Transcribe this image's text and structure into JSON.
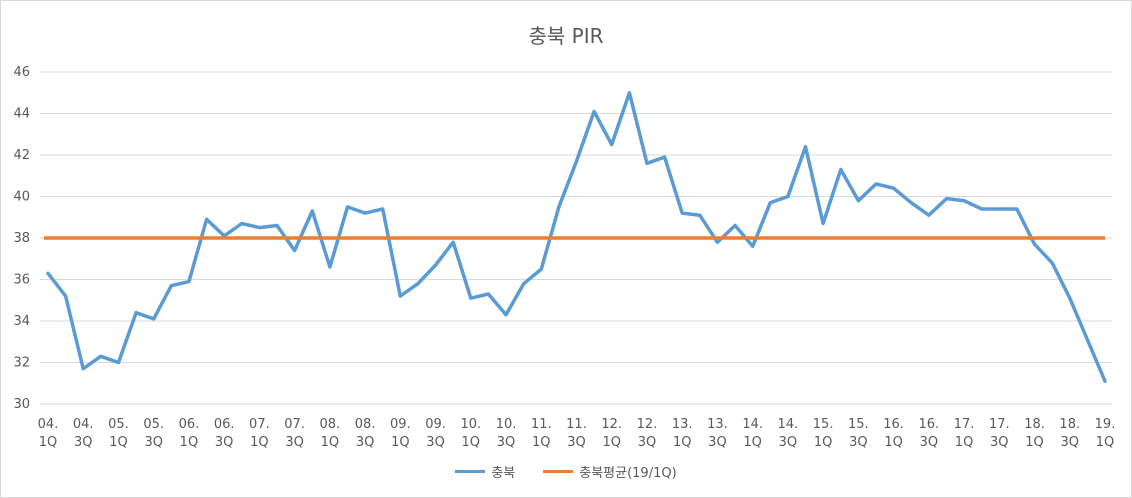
{
  "chart_data": {
    "type": "line",
    "title": "충북 PIR",
    "xlabel": "",
    "ylabel": "",
    "ylim": [
      30,
      46
    ],
    "yticks": [
      30,
      32,
      34,
      36,
      38,
      40,
      42,
      44,
      46
    ],
    "grid": true,
    "legend_position": "bottom",
    "x_tick_labels": [
      {
        "top": "04.",
        "bottom": "1Q"
      },
      {
        "top": "04.",
        "bottom": "3Q"
      },
      {
        "top": "05.",
        "bottom": "1Q"
      },
      {
        "top": "05.",
        "bottom": "3Q"
      },
      {
        "top": "06.",
        "bottom": "1Q"
      },
      {
        "top": "06.",
        "bottom": "3Q"
      },
      {
        "top": "07.",
        "bottom": "1Q"
      },
      {
        "top": "07.",
        "bottom": "3Q"
      },
      {
        "top": "08.",
        "bottom": "1Q"
      },
      {
        "top": "08.",
        "bottom": "3Q"
      },
      {
        "top": "09.",
        "bottom": "1Q"
      },
      {
        "top": "09.",
        "bottom": "3Q"
      },
      {
        "top": "10.",
        "bottom": "1Q"
      },
      {
        "top": "10.",
        "bottom": "3Q"
      },
      {
        "top": "11.",
        "bottom": "1Q"
      },
      {
        "top": "11.",
        "bottom": "3Q"
      },
      {
        "top": "12.",
        "bottom": "1Q"
      },
      {
        "top": "12.",
        "bottom": "3Q"
      },
      {
        "top": "13.",
        "bottom": "1Q"
      },
      {
        "top": "13.",
        "bottom": "3Q"
      },
      {
        "top": "14.",
        "bottom": "1Q"
      },
      {
        "top": "14.",
        "bottom": "3Q"
      },
      {
        "top": "15.",
        "bottom": "1Q"
      },
      {
        "top": "15.",
        "bottom": "3Q"
      },
      {
        "top": "16.",
        "bottom": "1Q"
      },
      {
        "top": "16.",
        "bottom": "3Q"
      },
      {
        "top": "17.",
        "bottom": "1Q"
      },
      {
        "top": "17.",
        "bottom": "3Q"
      },
      {
        "top": "18.",
        "bottom": "1Q"
      },
      {
        "top": "18.",
        "bottom": "3Q"
      },
      {
        "top": "19.",
        "bottom": "1Q"
      }
    ],
    "series": [
      {
        "name": "충북",
        "color": "#5b9bd5",
        "values": [
          36.3,
          35.2,
          31.7,
          32.3,
          32.0,
          34.4,
          34.1,
          35.7,
          35.9,
          38.9,
          38.1,
          38.7,
          38.5,
          38.6,
          37.4,
          39.3,
          36.6,
          39.5,
          39.2,
          39.4,
          35.2,
          35.8,
          36.7,
          37.8,
          35.1,
          35.3,
          34.3,
          35.8,
          36.5,
          39.5,
          41.7,
          44.1,
          42.5,
          45.0,
          41.6,
          41.9,
          39.2,
          39.1,
          37.8,
          38.6,
          37.6,
          39.7,
          40.0,
          42.4,
          38.7,
          41.3,
          39.8,
          40.6,
          40.4,
          39.7,
          39.1,
          39.9,
          39.8,
          39.4,
          39.4,
          39.4,
          37.7,
          36.8,
          35.1,
          33.1,
          31.1
        ]
      },
      {
        "name": "충북평균(19/1Q)",
        "color": "#ed7d31",
        "values": [
          38.0,
          38.0
        ]
      }
    ]
  }
}
